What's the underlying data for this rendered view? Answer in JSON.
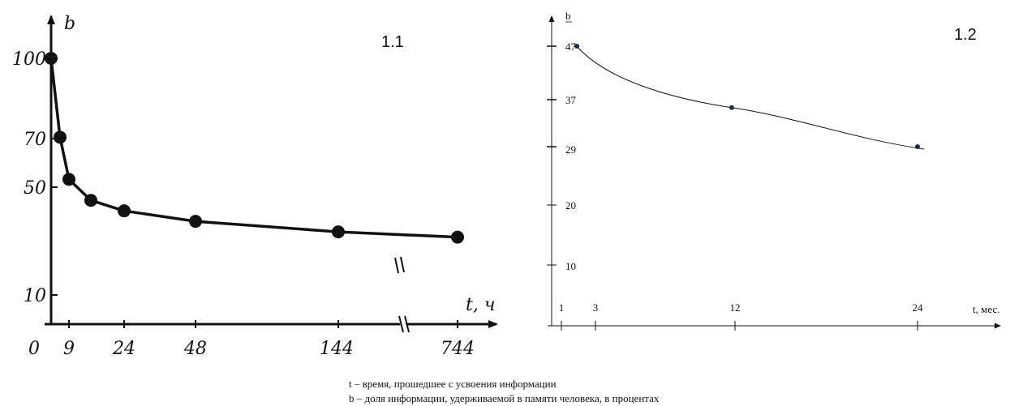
{
  "chart_data": [
    {
      "type": "line",
      "panel_label": "1.1",
      "ylabel": "b",
      "xlabel": "t, ч",
      "origin_label": "0",
      "x_tick_labels": [
        "9",
        "24",
        "48",
        "144",
        "744"
      ],
      "y_tick_labels": [
        "100",
        "70",
        "50",
        "10"
      ],
      "axis_break": true,
      "categories": [
        "0",
        "",
        "9",
        "",
        "24",
        "48",
        "144",
        "744"
      ],
      "values": [
        100,
        70,
        54,
        46,
        42,
        38,
        34,
        32
      ]
    },
    {
      "type": "line",
      "panel_label": "1.2",
      "ylabel": "b",
      "xlabel": "t, мес.",
      "x_tick_labels": [
        "1",
        "3",
        "12",
        "24"
      ],
      "y_tick_labels": [
        "47",
        "37",
        "29",
        "20",
        "10"
      ],
      "x": [
        2,
        12,
        24
      ],
      "values": [
        47,
        36,
        29
      ]
    }
  ],
  "caption": {
    "line1": "t – время, прошедшее с усвоения информации",
    "line2": "b – доля информации, удерживаемой в памяти человека, в процентах"
  },
  "colors": {
    "ink": "#111111",
    "point_right": "#1f2a44"
  }
}
